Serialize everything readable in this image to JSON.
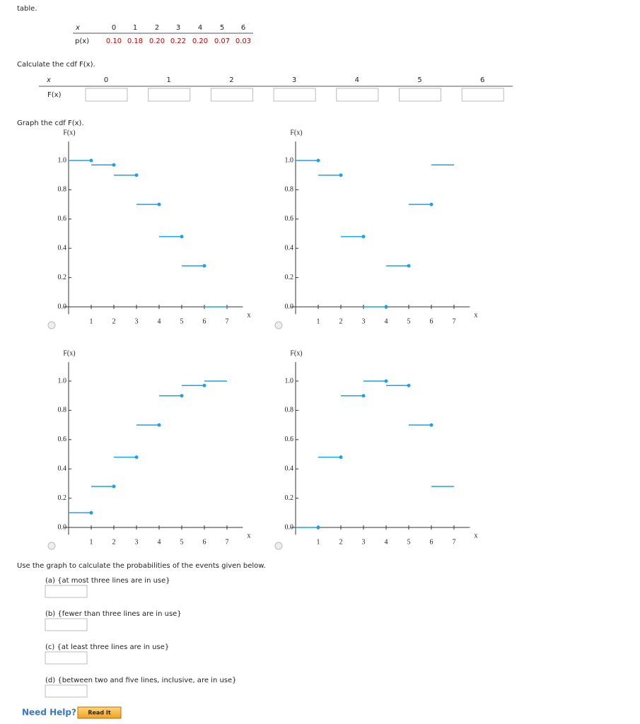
{
  "header": {
    "text": "table."
  },
  "pmf_table": {
    "x_label": "x",
    "x_values": [
      "0",
      "1",
      "2",
      "3",
      "4",
      "5",
      "6"
    ],
    "p_label": "p(x)",
    "p_values": [
      "0.10",
      "0.18",
      "0.20",
      "0.22",
      "0.20",
      "0.07",
      "0.03"
    ]
  },
  "cdf_prompt": "Calculate the cdf F(x).",
  "cdf_table": {
    "x_label": "x",
    "x_values": [
      "0",
      "1",
      "2",
      "3",
      "4",
      "5",
      "6"
    ],
    "f_label": "F(x)"
  },
  "graph_prompt": "Graph the cdf F(x).",
  "graphs": [
    {
      "y_label": "F(x)",
      "x_label": "x",
      "color": "#1aa3e8",
      "xlim": [
        -0.2,
        7.7
      ],
      "ylim": [
        -0.05,
        1.13
      ],
      "xticks": [
        1,
        2,
        3,
        4,
        5,
        6,
        7
      ],
      "yticks": [
        {
          "value": 0,
          "label": "0.0"
        },
        0.2,
        0.4,
        0.6,
        0.8,
        {
          "value": 1,
          "label": "1.0"
        }
      ],
      "steps": [
        {
          "x": [
            0,
            1
          ],
          "y": 1.0,
          "dot": true
        },
        {
          "x": [
            1,
            2
          ],
          "y": 0.97,
          "dot": true
        },
        {
          "x": [
            2,
            3
          ],
          "y": 0.9,
          "dot": true
        },
        {
          "x": [
            3,
            4
          ],
          "y": 0.7,
          "dot": true
        },
        {
          "x": [
            4,
            5
          ],
          "y": 0.48,
          "dot": true
        },
        {
          "x": [
            5,
            6
          ],
          "y": 0.28,
          "dot": true
        },
        {
          "x": [
            6,
            7
          ],
          "y": 0.0,
          "dot": false
        }
      ]
    },
    {
      "y_label": "F(x)",
      "x_label": "x",
      "color": "#1aa3e8",
      "xlim": [
        -0.2,
        7.7
      ],
      "ylim": [
        -0.05,
        1.13
      ],
      "xticks": [
        1,
        2,
        3,
        4,
        5,
        6,
        7
      ],
      "yticks": [
        {
          "value": 0,
          "label": "0.0"
        },
        0.2,
        0.4,
        0.6,
        0.8,
        {
          "value": 1,
          "label": "1.0"
        }
      ],
      "steps": [
        {
          "x": [
            0,
            1
          ],
          "y": 1.0,
          "dot": true
        },
        {
          "x": [
            1,
            2
          ],
          "y": 0.9,
          "dot": true
        },
        {
          "x": [
            2,
            3
          ],
          "y": 0.48,
          "dot": true
        },
        {
          "x": [
            3,
            4
          ],
          "y": 0.0,
          "dot": true
        },
        {
          "x": [
            4,
            5
          ],
          "y": 0.28,
          "dot": true
        },
        {
          "x": [
            5,
            6
          ],
          "y": 0.7,
          "dot": true
        },
        {
          "x": [
            6,
            7
          ],
          "y": 0.97,
          "dot": false
        }
      ]
    },
    {
      "y_label": "F(x)",
      "x_label": "x",
      "color": "#1aa3e8",
      "xlim": [
        -0.2,
        7.7
      ],
      "ylim": [
        -0.05,
        1.13
      ],
      "xticks": [
        1,
        2,
        3,
        4,
        5,
        6,
        7
      ],
      "yticks": [
        {
          "value": 0,
          "label": "0.0"
        },
        0.2,
        0.4,
        0.6,
        0.8,
        {
          "value": 1,
          "label": "1.0"
        }
      ],
      "steps": [
        {
          "x": [
            0,
            1
          ],
          "y": 0.1,
          "dot": true
        },
        {
          "x": [
            1,
            2
          ],
          "y": 0.28,
          "dot": true
        },
        {
          "x": [
            2,
            3
          ],
          "y": 0.48,
          "dot": true
        },
        {
          "x": [
            3,
            4
          ],
          "y": 0.7,
          "dot": true
        },
        {
          "x": [
            4,
            5
          ],
          "y": 0.9,
          "dot": true
        },
        {
          "x": [
            5,
            6
          ],
          "y": 0.97,
          "dot": true
        },
        {
          "x": [
            6,
            7
          ],
          "y": 1.0,
          "dot": false
        }
      ]
    },
    {
      "y_label": "F(x)",
      "x_label": "x",
      "color": "#1aa3e8",
      "xlim": [
        -0.2,
        7.7
      ],
      "ylim": [
        -0.05,
        1.13
      ],
      "xticks": [
        1,
        2,
        3,
        4,
        5,
        6,
        7
      ],
      "yticks": [
        {
          "value": 0,
          "label": "0.0"
        },
        0.2,
        0.4,
        0.6,
        0.8,
        {
          "value": 1,
          "label": "1.0"
        }
      ],
      "steps": [
        {
          "x": [
            0,
            1
          ],
          "y": 0.0,
          "dot": true
        },
        {
          "x": [
            1,
            2
          ],
          "y": 0.48,
          "dot": true
        },
        {
          "x": [
            2,
            3
          ],
          "y": 0.9,
          "dot": true
        },
        {
          "x": [
            3,
            4
          ],
          "y": 1.0,
          "dot": true
        },
        {
          "x": [
            4,
            5
          ],
          "y": 0.97,
          "dot": true
        },
        {
          "x": [
            5,
            6
          ],
          "y": 0.7,
          "dot": true
        },
        {
          "x": [
            6,
            7
          ],
          "y": 0.28,
          "dot": false
        }
      ]
    }
  ],
  "questions": {
    "prompt": "Use the graph to calculate the probabilities of the events given below.",
    "items": [
      "(a) {at most three lines are in use}",
      "(b) {fewer than three lines are in use}",
      "(c) {at least three lines are in use}",
      "(d) {between two and five lines, inclusive, are in use}"
    ]
  },
  "help": {
    "label": "Need Help?",
    "button": "Read It"
  }
}
